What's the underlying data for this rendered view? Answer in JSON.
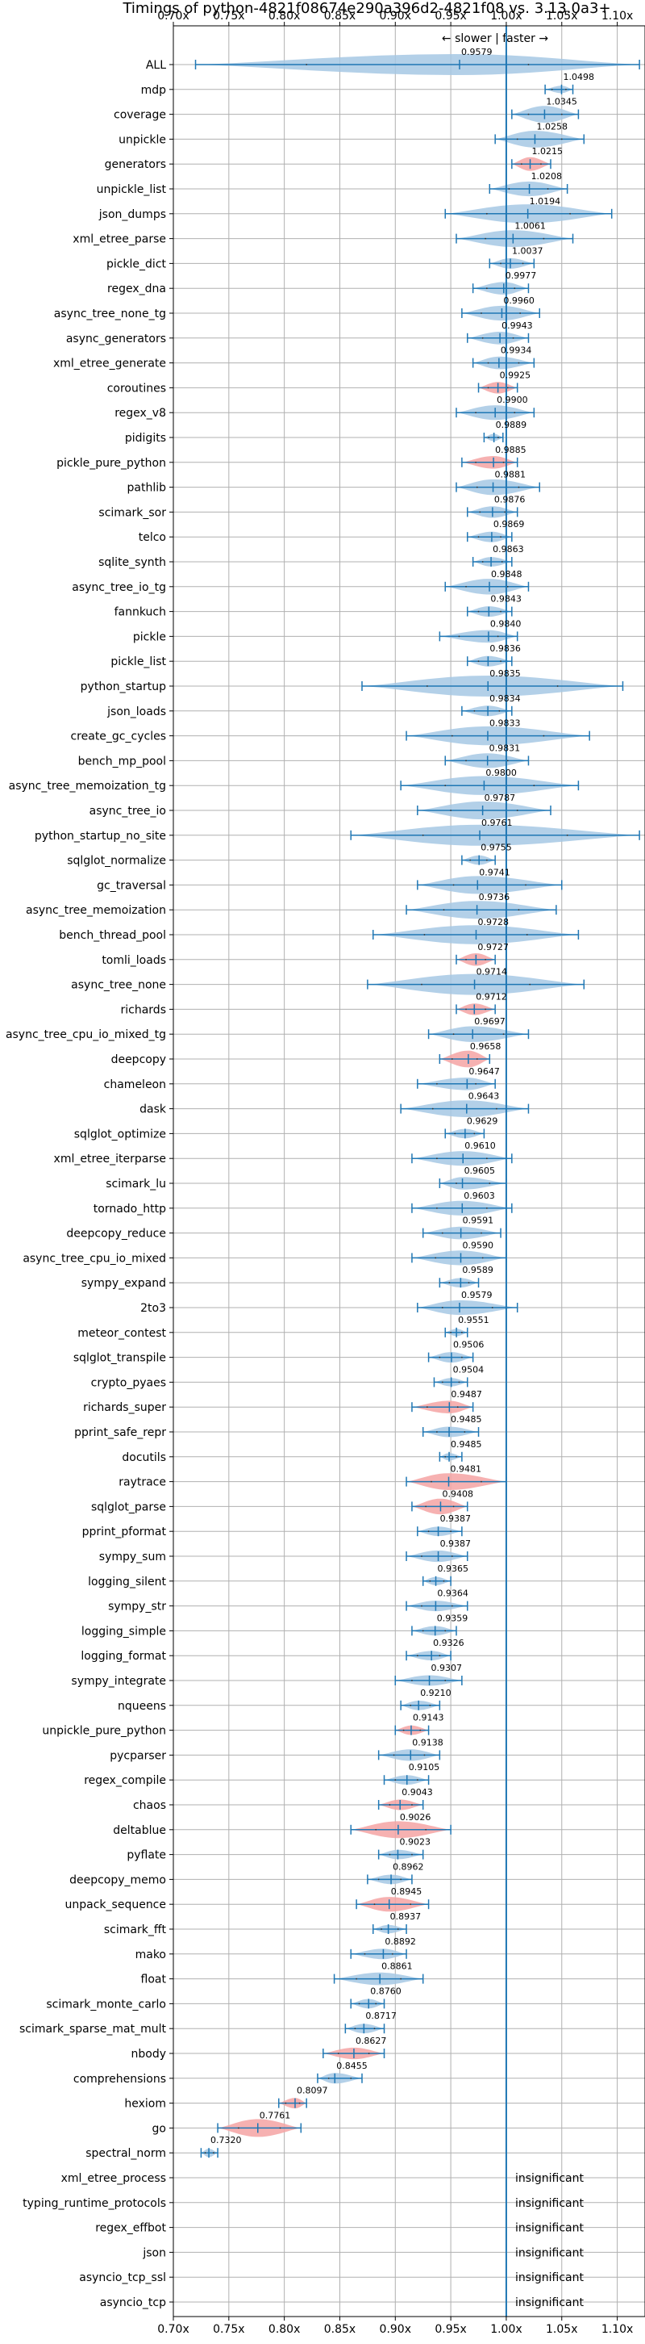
{
  "chart_data": {
    "type": "violin",
    "title": "Timings of python-4821f08674e290a396d2-4821f08 vs. 3.13.0a3+",
    "subtitle": "← slower | faster →",
    "xlim": [
      0.7,
      1.125
    ],
    "x_ticks": [
      0.7,
      0.75,
      0.8,
      0.85,
      0.9,
      0.95,
      1.0,
      1.05,
      1.1
    ],
    "x_tick_labels": [
      "0.70x",
      "0.75x",
      "0.80x",
      "0.85x",
      "0.90x",
      "0.95x",
      "1.00x",
      "1.05x",
      "1.10x"
    ],
    "reference_line": 1.0,
    "grid": true,
    "colors": {
      "normal": "#a6c8e4",
      "slower": "#f5a3a3",
      "whisker": "#1f77b4",
      "reference": "#1f77b4"
    },
    "insignificant_label": "insignificant",
    "benchmarks": [
      {
        "name": "ALL",
        "value": 0.9579,
        "lo": 0.72,
        "hi": 1.12,
        "wide": 1,
        "slow": false
      },
      {
        "name": "mdp",
        "value": 1.0498,
        "lo": 1.035,
        "hi": 1.06,
        "wide": 0.35,
        "slow": false
      },
      {
        "name": "coverage",
        "value": 1.0345,
        "lo": 1.005,
        "hi": 1.065,
        "wide": 0.8,
        "slow": false
      },
      {
        "name": "unpickle",
        "value": 1.0258,
        "lo": 0.99,
        "hi": 1.07,
        "wide": 0.8,
        "slow": false
      },
      {
        "name": "generators",
        "value": 1.0215,
        "lo": 1.005,
        "hi": 1.04,
        "wide": 0.65,
        "slow": true
      },
      {
        "name": "unpickle_list",
        "value": 1.0208,
        "lo": 0.985,
        "hi": 1.055,
        "wide": 0.7,
        "slow": false
      },
      {
        "name": "json_dumps",
        "value": 1.0194,
        "lo": 0.945,
        "hi": 1.095,
        "wide": 0.9,
        "slow": false
      },
      {
        "name": "xml_etree_parse",
        "value": 1.0061,
        "lo": 0.955,
        "hi": 1.06,
        "wide": 0.8,
        "slow": false
      },
      {
        "name": "pickle_dict",
        "value": 1.0037,
        "lo": 0.985,
        "hi": 1.025,
        "wide": 0.5,
        "slow": false
      },
      {
        "name": "regex_dna",
        "value": 0.9977,
        "lo": 0.97,
        "hi": 1.02,
        "wide": 0.6,
        "slow": false
      },
      {
        "name": "async_tree_none_tg",
        "value": 0.996,
        "lo": 0.96,
        "hi": 1.03,
        "wide": 0.7,
        "slow": false
      },
      {
        "name": "async_generators",
        "value": 0.9943,
        "lo": 0.965,
        "hi": 1.02,
        "wide": 0.6,
        "slow": false
      },
      {
        "name": "xml_etree_generate",
        "value": 0.9934,
        "lo": 0.97,
        "hi": 1.025,
        "wide": 0.6,
        "slow": false
      },
      {
        "name": "coroutines",
        "value": 0.9925,
        "lo": 0.975,
        "hi": 1.01,
        "wide": 0.55,
        "slow": true
      },
      {
        "name": "regex_v8",
        "value": 0.99,
        "lo": 0.955,
        "hi": 1.025,
        "wide": 0.7,
        "slow": false
      },
      {
        "name": "pidigits",
        "value": 0.9889,
        "lo": 0.98,
        "hi": 0.997,
        "wide": 0.35,
        "slow": false
      },
      {
        "name": "pickle_pure_python",
        "value": 0.9885,
        "lo": 0.96,
        "hi": 1.01,
        "wide": 0.6,
        "slow": true
      },
      {
        "name": "pathlib",
        "value": 0.9881,
        "lo": 0.955,
        "hi": 1.03,
        "wide": 0.75,
        "slow": false
      },
      {
        "name": "scimark_sor",
        "value": 0.9876,
        "lo": 0.965,
        "hi": 1.01,
        "wide": 0.55,
        "slow": false
      },
      {
        "name": "telco",
        "value": 0.9869,
        "lo": 0.965,
        "hi": 1.005,
        "wide": 0.5,
        "slow": false
      },
      {
        "name": "sqlite_synth",
        "value": 0.9863,
        "lo": 0.97,
        "hi": 1.005,
        "wide": 0.45,
        "slow": false
      },
      {
        "name": "async_tree_io_tg",
        "value": 0.9848,
        "lo": 0.945,
        "hi": 1.02,
        "wide": 0.75,
        "slow": false
      },
      {
        "name": "fannkuch",
        "value": 0.9843,
        "lo": 0.965,
        "hi": 1.005,
        "wide": 0.5,
        "slow": false
      },
      {
        "name": "pickle",
        "value": 0.984,
        "lo": 0.94,
        "hi": 1.01,
        "wide": 0.6,
        "slow": false
      },
      {
        "name": "pickle_list",
        "value": 0.9836,
        "lo": 0.965,
        "hi": 1.005,
        "wide": 0.5,
        "slow": false
      },
      {
        "name": "python_startup",
        "value": 0.9835,
        "lo": 0.87,
        "hi": 1.105,
        "wide": 1,
        "slow": false
      },
      {
        "name": "json_loads",
        "value": 0.9834,
        "lo": 0.96,
        "hi": 1.005,
        "wide": 0.5,
        "slow": false
      },
      {
        "name": "create_gc_cycles",
        "value": 0.9833,
        "lo": 0.91,
        "hi": 1.075,
        "wide": 0.9,
        "slow": false
      },
      {
        "name": "bench_mp_pool",
        "value": 0.9831,
        "lo": 0.945,
        "hi": 1.02,
        "wide": 0.7,
        "slow": false
      },
      {
        "name": "async_tree_memoization_tg",
        "value": 0.98,
        "lo": 0.905,
        "hi": 1.065,
        "wide": 0.9,
        "slow": false
      },
      {
        "name": "async_tree_io",
        "value": 0.9787,
        "lo": 0.92,
        "hi": 1.04,
        "wide": 0.85,
        "slow": false
      },
      {
        "name": "python_startup_no_site",
        "value": 0.9761,
        "lo": 0.86,
        "hi": 1.12,
        "wide": 1,
        "slow": false
      },
      {
        "name": "sqlglot_normalize",
        "value": 0.9755,
        "lo": 0.96,
        "hi": 0.99,
        "wide": 0.45,
        "slow": false
      },
      {
        "name": "gc_traversal",
        "value": 0.9741,
        "lo": 0.92,
        "hi": 1.05,
        "wide": 0.85,
        "slow": false
      },
      {
        "name": "async_tree_memoization",
        "value": 0.9736,
        "lo": 0.91,
        "hi": 1.045,
        "wide": 0.85,
        "slow": false
      },
      {
        "name": "bench_thread_pool",
        "value": 0.9728,
        "lo": 0.88,
        "hi": 1.065,
        "wide": 0.9,
        "slow": false
      },
      {
        "name": "tomli_loads",
        "value": 0.9727,
        "lo": 0.955,
        "hi": 0.99,
        "wide": 0.6,
        "slow": true
      },
      {
        "name": "async_tree_none",
        "value": 0.9714,
        "lo": 0.875,
        "hi": 1.07,
        "wide": 1,
        "slow": false
      },
      {
        "name": "richards",
        "value": 0.9712,
        "lo": 0.955,
        "hi": 0.99,
        "wide": 0.55,
        "slow": true
      },
      {
        "name": "async_tree_cpu_io_mixed_tg",
        "value": 0.9697,
        "lo": 0.93,
        "hi": 1.02,
        "wide": 0.75,
        "slow": false
      },
      {
        "name": "deepcopy",
        "value": 0.9658,
        "lo": 0.94,
        "hi": 0.985,
        "wide": 0.8,
        "slow": true
      },
      {
        "name": "chameleon",
        "value": 0.9647,
        "lo": 0.92,
        "hi": 0.99,
        "wide": 0.6,
        "slow": false
      },
      {
        "name": "dask",
        "value": 0.9643,
        "lo": 0.905,
        "hi": 1.02,
        "wide": 0.8,
        "slow": false
      },
      {
        "name": "sqlglot_optimize",
        "value": 0.9629,
        "lo": 0.945,
        "hi": 0.98,
        "wide": 0.45,
        "slow": false
      },
      {
        "name": "xml_etree_iterparse",
        "value": 0.961,
        "lo": 0.915,
        "hi": 1.005,
        "wide": 0.7,
        "slow": false
      },
      {
        "name": "scimark_lu",
        "value": 0.9605,
        "lo": 0.94,
        "hi": 1.0,
        "wide": 0.6,
        "slow": false
      },
      {
        "name": "tornado_http",
        "value": 0.9603,
        "lo": 0.915,
        "hi": 1.005,
        "wide": 0.7,
        "slow": false
      },
      {
        "name": "deepcopy_reduce",
        "value": 0.9591,
        "lo": 0.925,
        "hi": 0.995,
        "wide": 0.6,
        "slow": false
      },
      {
        "name": "async_tree_cpu_io_mixed",
        "value": 0.959,
        "lo": 0.915,
        "hi": 1.0,
        "wide": 0.7,
        "slow": false
      },
      {
        "name": "sympy_expand",
        "value": 0.9589,
        "lo": 0.94,
        "hi": 0.975,
        "wide": 0.45,
        "slow": false
      },
      {
        "name": "2to3",
        "value": 0.9579,
        "lo": 0.92,
        "hi": 1.01,
        "wide": 0.7,
        "slow": false
      },
      {
        "name": "meteor_contest",
        "value": 0.9551,
        "lo": 0.945,
        "hi": 0.965,
        "wide": 0.35,
        "slow": false
      },
      {
        "name": "sqlglot_transpile",
        "value": 0.9506,
        "lo": 0.93,
        "hi": 0.97,
        "wide": 0.5,
        "slow": false
      },
      {
        "name": "crypto_pyaes",
        "value": 0.9504,
        "lo": 0.935,
        "hi": 0.965,
        "wide": 0.4,
        "slow": false
      },
      {
        "name": "richards_super",
        "value": 0.9487,
        "lo": 0.915,
        "hi": 0.97,
        "wide": 0.6,
        "slow": true
      },
      {
        "name": "pprint_safe_repr",
        "value": 0.9485,
        "lo": 0.925,
        "hi": 0.975,
        "wide": 0.5,
        "slow": false
      },
      {
        "name": "docutils",
        "value": 0.9485,
        "lo": 0.94,
        "hi": 0.96,
        "wide": 0.35,
        "slow": false
      },
      {
        "name": "raytrace",
        "value": 0.9481,
        "lo": 0.91,
        "hi": 1.0,
        "wide": 0.8,
        "slow": true
      },
      {
        "name": "sqlglot_parse",
        "value": 0.9408,
        "lo": 0.915,
        "hi": 0.965,
        "wide": 0.75,
        "slow": true
      },
      {
        "name": "pprint_pformat",
        "value": 0.9387,
        "lo": 0.92,
        "hi": 0.96,
        "wide": 0.45,
        "slow": false
      },
      {
        "name": "sympy_sum",
        "value": 0.9387,
        "lo": 0.91,
        "hi": 0.965,
        "wide": 0.55,
        "slow": false
      },
      {
        "name": "logging_silent",
        "value": 0.9365,
        "lo": 0.925,
        "hi": 0.95,
        "wide": 0.4,
        "slow": false
      },
      {
        "name": "sympy_str",
        "value": 0.9364,
        "lo": 0.91,
        "hi": 0.965,
        "wide": 0.5,
        "slow": false
      },
      {
        "name": "logging_simple",
        "value": 0.9359,
        "lo": 0.915,
        "hi": 0.955,
        "wide": 0.45,
        "slow": false
      },
      {
        "name": "logging_format",
        "value": 0.9326,
        "lo": 0.91,
        "hi": 0.95,
        "wide": 0.45,
        "slow": false
      },
      {
        "name": "sympy_integrate",
        "value": 0.9307,
        "lo": 0.9,
        "hi": 0.96,
        "wide": 0.5,
        "slow": false
      },
      {
        "name": "nqueens",
        "value": 0.921,
        "lo": 0.905,
        "hi": 0.94,
        "wide": 0.45,
        "slow": false
      },
      {
        "name": "unpickle_pure_python",
        "value": 0.9143,
        "lo": 0.9,
        "hi": 0.93,
        "wide": 0.45,
        "slow": true
      },
      {
        "name": "pycparser",
        "value": 0.9138,
        "lo": 0.885,
        "hi": 0.94,
        "wide": 0.55,
        "slow": false
      },
      {
        "name": "regex_compile",
        "value": 0.9105,
        "lo": 0.89,
        "hi": 0.93,
        "wide": 0.45,
        "slow": false
      },
      {
        "name": "chaos",
        "value": 0.9043,
        "lo": 0.885,
        "hi": 0.925,
        "wide": 0.5,
        "slow": true
      },
      {
        "name": "deltablue",
        "value": 0.9026,
        "lo": 0.86,
        "hi": 0.95,
        "wide": 0.8,
        "slow": true
      },
      {
        "name": "pyflate",
        "value": 0.9023,
        "lo": 0.885,
        "hi": 0.925,
        "wide": 0.45,
        "slow": false
      },
      {
        "name": "deepcopy_memo",
        "value": 0.8962,
        "lo": 0.875,
        "hi": 0.915,
        "wide": 0.45,
        "slow": false
      },
      {
        "name": "unpack_sequence",
        "value": 0.8945,
        "lo": 0.865,
        "hi": 0.93,
        "wide": 0.7,
        "slow": true
      },
      {
        "name": "scimark_fft",
        "value": 0.8937,
        "lo": 0.88,
        "hi": 0.91,
        "wide": 0.4,
        "slow": false
      },
      {
        "name": "mako",
        "value": 0.8892,
        "lo": 0.86,
        "hi": 0.91,
        "wide": 0.5,
        "slow": false
      },
      {
        "name": "float",
        "value": 0.8861,
        "lo": 0.845,
        "hi": 0.925,
        "wide": 0.6,
        "slow": false
      },
      {
        "name": "scimark_monte_carlo",
        "value": 0.876,
        "lo": 0.86,
        "hi": 0.89,
        "wide": 0.45,
        "slow": false
      },
      {
        "name": "scimark_sparse_mat_mult",
        "value": 0.8717,
        "lo": 0.855,
        "hi": 0.89,
        "wide": 0.45,
        "slow": false
      },
      {
        "name": "nbody",
        "value": 0.8627,
        "lo": 0.835,
        "hi": 0.89,
        "wide": 0.55,
        "slow": true
      },
      {
        "name": "comprehensions",
        "value": 0.8455,
        "lo": 0.83,
        "hi": 0.87,
        "wide": 0.5,
        "slow": false
      },
      {
        "name": "hexiom",
        "value": 0.8097,
        "lo": 0.795,
        "hi": 0.82,
        "wide": 0.5,
        "slow": true
      },
      {
        "name": "go",
        "value": 0.7761,
        "lo": 0.74,
        "hi": 0.815,
        "wide": 0.85,
        "slow": true
      },
      {
        "name": "spectral_norm",
        "value": 0.732,
        "lo": 0.725,
        "hi": 0.74,
        "wide": 0.4,
        "slow": false
      },
      {
        "name": "xml_etree_process",
        "insignificant": true
      },
      {
        "name": "typing_runtime_protocols",
        "insignificant": true
      },
      {
        "name": "regex_effbot",
        "insignificant": true
      },
      {
        "name": "json",
        "insignificant": true
      },
      {
        "name": "asyncio_tcp_ssl",
        "insignificant": true
      },
      {
        "name": "asyncio_tcp",
        "insignificant": true
      }
    ]
  }
}
